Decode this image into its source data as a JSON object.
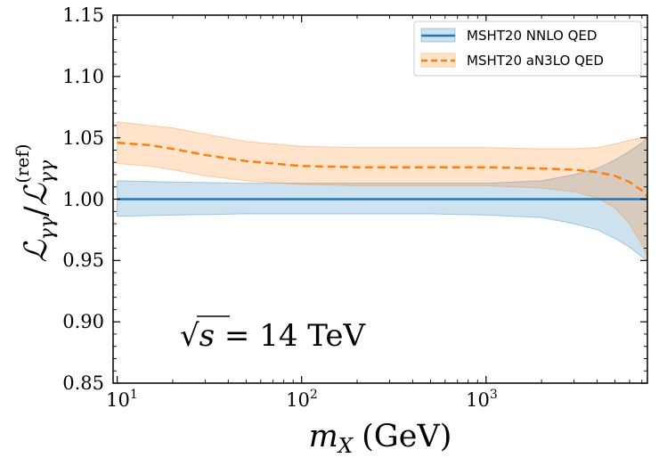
{
  "chart_data": {
    "type": "line",
    "xscale": "log",
    "xlim": [
      9.5,
      7500
    ],
    "ylim": [
      0.85,
      1.15
    ],
    "xlabel_var": "m",
    "xlabel_sub": "X",
    "xlabel_unit": "(GeV)",
    "ylabel": "ℒγγ / ℒγγ(ref)",
    "ylabel_num": "ℒ",
    "ylabel_num_sub": "γγ",
    "ylabel_slash": "/",
    "ylabel_den": "ℒ",
    "ylabel_den_sub": "γγ",
    "ylabel_den_sup": "(ref)",
    "x_ticks": [
      {
        "value": 10,
        "base": "10",
        "exp": "1"
      },
      {
        "value": 100,
        "base": "10",
        "exp": "2"
      },
      {
        "value": 1000,
        "base": "10",
        "exp": "3"
      }
    ],
    "y_ticks": [
      "0.85",
      "0.90",
      "0.95",
      "1.00",
      "1.05",
      "1.10",
      "1.15"
    ],
    "annotation": {
      "sqrt": "√",
      "s": "s",
      "rest": " = 14 TeV"
    },
    "legend_position": "top-right",
    "grid": false,
    "series": [
      {
        "name": "MSHT20 NNLO QED",
        "color": "#1f77b4",
        "style": "solid",
        "x": [
          10,
          20,
          50,
          100,
          200,
          500,
          1000,
          2000,
          3000,
          4000,
          5000,
          6000,
          7000,
          7500
        ],
        "y": [
          1.0,
          1.0,
          1.0,
          1.0,
          1.0,
          1.0,
          1.0,
          1.0,
          1.0,
          1.0,
          1.0,
          1.0,
          1.0,
          1.0
        ],
        "upper": [
          1.015,
          1.014,
          1.013,
          1.013,
          1.013,
          1.013,
          1.013,
          1.015,
          1.02,
          1.025,
          1.032,
          1.039,
          1.046,
          1.05
        ],
        "lower": [
          0.986,
          0.987,
          0.988,
          0.988,
          0.988,
          0.988,
          0.987,
          0.985,
          0.98,
          0.975,
          0.968,
          0.961,
          0.953,
          0.95
        ]
      },
      {
        "name": "MSHT20 aN3LO QED",
        "color": "#ff7f0e",
        "style": "dashed",
        "x": [
          10,
          15,
          20,
          30,
          50,
          100,
          200,
          500,
          1000,
          2000,
          3000,
          4000,
          5000,
          6000,
          7000,
          7500
        ],
        "y": [
          1.046,
          1.044,
          1.041,
          1.036,
          1.031,
          1.027,
          1.026,
          1.026,
          1.026,
          1.025,
          1.024,
          1.022,
          1.019,
          1.014,
          1.007,
          1.002
        ],
        "upper": [
          1.063,
          1.06,
          1.058,
          1.053,
          1.047,
          1.043,
          1.042,
          1.042,
          1.042,
          1.041,
          1.041,
          1.042,
          1.045,
          1.048,
          1.05,
          1.052
        ],
        "lower": [
          1.029,
          1.027,
          1.024,
          1.019,
          1.015,
          1.012,
          1.011,
          1.011,
          1.011,
          1.009,
          1.006,
          1.001,
          0.993,
          0.98,
          0.963,
          0.952
        ]
      }
    ]
  }
}
